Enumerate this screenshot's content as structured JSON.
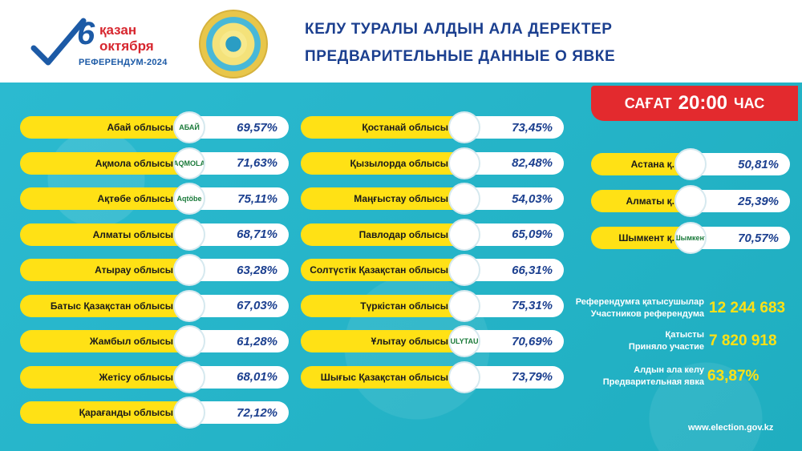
{
  "header": {
    "logo_day": "6",
    "logo_month_kz": "қазан",
    "logo_month_ru": "октября",
    "logo_subtitle": "РЕФЕРЕНДУМ-2024",
    "title_kz": "КЕЛУ ТУРАЛЫ АЛДЫН АЛА ДЕРЕКТЕР",
    "title_ru": "ПРЕДВАРИТЕЛЬНЫЕ ДАННЫЕ О ЯВКЕ"
  },
  "time": {
    "label_kz": "САҒАТ",
    "value": "20:00",
    "label_ru": "ЧАС"
  },
  "regions_col1": [
    {
      "name": "Абай облысы",
      "value": "69,57%",
      "emblem": "АБАЙ"
    },
    {
      "name": "Ақмола облысы",
      "value": "71,63%",
      "emblem": "AQMOLA"
    },
    {
      "name": "Ақтөбе облысы",
      "value": "75,11%",
      "emblem": "Aqtöbe"
    },
    {
      "name": "Алматы облысы",
      "value": "68,71%",
      "emblem": ""
    },
    {
      "name": "Атырау  облысы",
      "value": "63,28%",
      "emblem": ""
    },
    {
      "name": "Батыс Қазақстан облысы",
      "value": "67,03%",
      "emblem": ""
    },
    {
      "name": "Жамбыл облысы",
      "value": "61,28%",
      "emblem": ""
    },
    {
      "name": "Жетісу облысы",
      "value": "68,01%",
      "emblem": ""
    },
    {
      "name": "Қарағанды облысы",
      "value": "72,12%",
      "emblem": ""
    }
  ],
  "regions_col2": [
    {
      "name": "Қостанай облысы",
      "value": "73,45%",
      "emblem": ""
    },
    {
      "name": "Қызылорда облысы",
      "value": "82,48%",
      "emblem": ""
    },
    {
      "name": "Маңғыстау облысы",
      "value": "54,03%",
      "emblem": ""
    },
    {
      "name": "Павлодар облысы",
      "value": "65,09%",
      "emblem": ""
    },
    {
      "name": "Солтүстік Қазақстан облысы",
      "value": "66,31%",
      "emblem": ""
    },
    {
      "name": "Түркістан облысы",
      "value": "75,31%",
      "emblem": ""
    },
    {
      "name": "Ұлытау облысы",
      "value": "70,69%",
      "emblem": "ULYTAU"
    },
    {
      "name": "Шығыс Қазақстан облысы",
      "value": "73,79%",
      "emblem": ""
    }
  ],
  "cities": [
    {
      "name": "Астана  қ.",
      "value": "50,81%",
      "emblem": ""
    },
    {
      "name": "Алматы  қ.",
      "value": "25,39%",
      "emblem": ""
    },
    {
      "name": "Шымкент қ.",
      "value": "70,57%",
      "emblem": "Шымкент"
    }
  ],
  "summary": {
    "participants_kz": "Референдумға қатысушылар",
    "participants_ru": "Участников референдума",
    "participants_value": "12 244 683",
    "took_part_kz": "Қатысты",
    "took_part_ru": "Приняло участие",
    "took_part_value": "7 820 918",
    "turnout_kz": "Алдын ала келу",
    "turnout_ru": "Предварительная явка",
    "turnout_value": "63,87%"
  },
  "website": "www.election.gov.kz",
  "colors": {
    "panel": "#26b6c8",
    "pill": "#ffe115",
    "accent_red": "#e32a2e",
    "title_blue": "#1b3f8f"
  }
}
